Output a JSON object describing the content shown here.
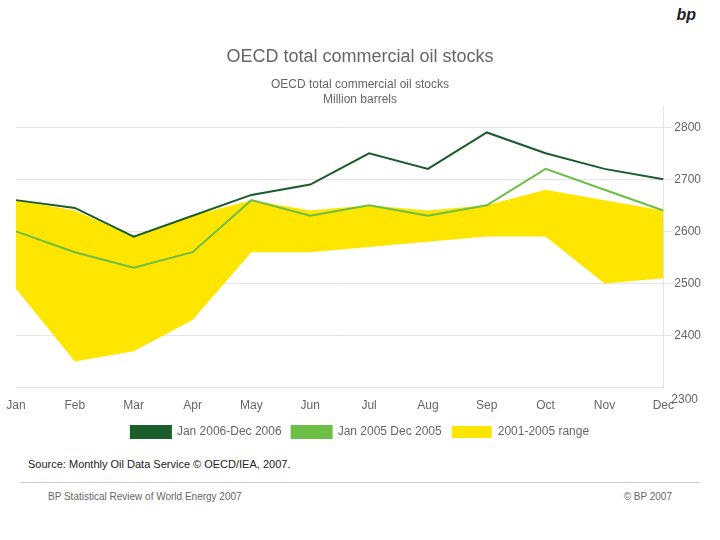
{
  "chart_data": {
    "type": "line",
    "title": "OECD total commercial oil stocks",
    "subtitle": "OECD total commercial oil stocks\nMillion barrels",
    "categories": [
      "Jan",
      "Feb",
      "Mar",
      "Apr",
      "May",
      "Jun",
      "Jul",
      "Aug",
      "Sep",
      "Oct",
      "Nov",
      "Dec"
    ],
    "series": [
      {
        "name": "Jan 2006-Dec 2006",
        "color": "#1a5c2a",
        "values": [
          2660,
          2645,
          2590,
          2630,
          2670,
          2690,
          2750,
          2720,
          2790,
          2750,
          2720,
          2700
        ]
      },
      {
        "name": "Jan 2005 Dec 2005",
        "color": "#6dbe45",
        "values": [
          2600,
          2560,
          2530,
          2560,
          2660,
          2630,
          2650,
          2630,
          2650,
          2720,
          2680,
          2640
        ]
      },
      {
        "name": "2001-2005 range",
        "color": "#ffe600",
        "type": "range",
        "high": [
          2660,
          2640,
          2590,
          2630,
          2660,
          2640,
          2650,
          2640,
          2650,
          2680,
          2660,
          2640
        ],
        "low": [
          2490,
          2350,
          2370,
          2430,
          2560,
          2560,
          2570,
          2580,
          2590,
          2590,
          2500,
          2510
        ]
      }
    ],
    "ylim": [
      2300,
      2840
    ],
    "yticks": [
      2400,
      2500,
      2600,
      2700,
      2800
    ],
    "grid": true,
    "legend": "bottom",
    "annotations": [
      "2300",
      "Source: Monthly Oil Data Service © OECD/IEA, 2007.",
      "BP Statistical Review of World Energy 2007",
      "© BP 2007",
      "bp"
    ]
  }
}
